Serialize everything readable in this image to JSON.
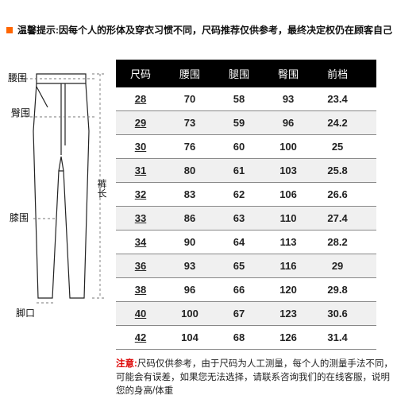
{
  "warning": {
    "label": "温馨提示:",
    "text": "因每个人的形体及穿衣习惯不同，尺码推荐仅供参考，最终决定权仍在顾客自己"
  },
  "diagram": {
    "labels": {
      "waist": "腰围",
      "hip": "臀围",
      "knee": "膝围",
      "hem": "脚口",
      "length": "裤长"
    },
    "colors": {
      "stroke": "#222222",
      "dash": "#777777"
    }
  },
  "table": {
    "header_bg": "#000000",
    "header_fg": "#ffffff",
    "columns": [
      "尺码",
      "腰围",
      "腿围",
      "臀围",
      "前档"
    ],
    "rows": [
      [
        "28",
        "70",
        "58",
        "93",
        "23.4"
      ],
      [
        "29",
        "73",
        "59",
        "96",
        "24.2"
      ],
      [
        "30",
        "76",
        "60",
        "100",
        "25"
      ],
      [
        "31",
        "80",
        "61",
        "103",
        "25.8"
      ],
      [
        "32",
        "83",
        "62",
        "106",
        "26.6"
      ],
      [
        "33",
        "86",
        "63",
        "110",
        "27.4"
      ],
      [
        "34",
        "90",
        "64",
        "113",
        "28.2"
      ],
      [
        "36",
        "93",
        "65",
        "116",
        "29"
      ],
      [
        "38",
        "96",
        "66",
        "120",
        "29.8"
      ],
      [
        "40",
        "100",
        "67",
        "123",
        "30.6"
      ],
      [
        "42",
        "104",
        "68",
        "126",
        "31.4"
      ]
    ]
  },
  "footnote": {
    "label": "注意:",
    "text": "尺码仅供参考，由于尺码为人工测量，每个人的测量手法不同，可能会有误差，如果您无法选择，请联系咨询我们的在线客服，说明您的身高/体重"
  }
}
